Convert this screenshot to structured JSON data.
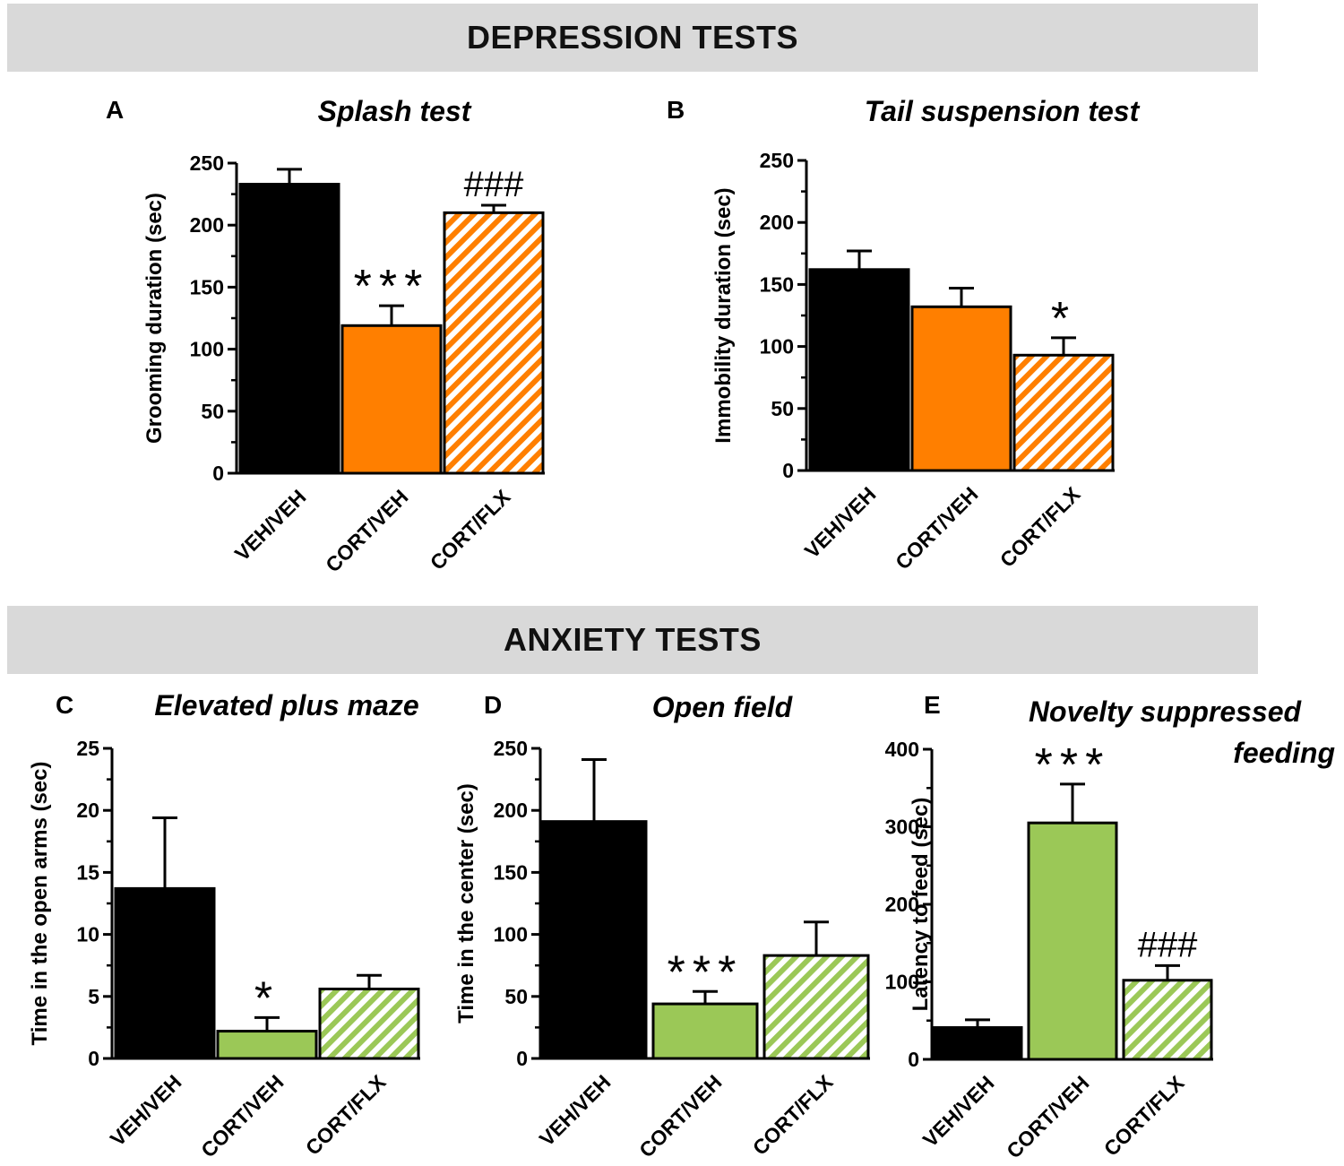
{
  "sections": {
    "depression": "DEPRESSION TESTS",
    "anxiety": "ANXIETY TESTS"
  },
  "colors": {
    "veh": "#000000",
    "orange": "#ff7f00",
    "green": "#9bc857",
    "banner": "#d9d9d9"
  },
  "chart_data": [
    {
      "panel": "A",
      "type": "bar",
      "title": "Splash test",
      "xlabel": "",
      "ylabel": "Grooming duration (sec)",
      "ylim": [
        0,
        250
      ],
      "yticks": [
        0,
        50,
        100,
        150,
        200,
        250
      ],
      "categories": [
        "VEH/VEH",
        "CORT/VEH",
        "CORT/FLX"
      ],
      "values": [
        233,
        119,
        210
      ],
      "errors": [
        12,
        16,
        6
      ],
      "annotations": [
        "",
        "***",
        "###"
      ],
      "colors": [
        "#000000",
        "#ff7f00",
        "#ff7f00"
      ],
      "hatched": [
        false,
        false,
        true
      ]
    },
    {
      "panel": "B",
      "type": "bar",
      "title": "Tail suspension test",
      "xlabel": "",
      "ylabel": "Immobility duration (sec)",
      "ylim": [
        0,
        250
      ],
      "yticks": [
        0,
        50,
        100,
        150,
        200,
        250
      ],
      "categories": [
        "VEH/VEH",
        "CORT/VEH",
        "CORT/FLX"
      ],
      "values": [
        162,
        132,
        93
      ],
      "errors": [
        15,
        15,
        14
      ],
      "annotations": [
        "",
        "",
        "*"
      ],
      "colors": [
        "#000000",
        "#ff7f00",
        "#ff7f00"
      ],
      "hatched": [
        false,
        false,
        true
      ]
    },
    {
      "panel": "C",
      "type": "bar",
      "title": "Elevated plus maze",
      "xlabel": "",
      "ylabel": "Time in the open arms (sec)",
      "ylim": [
        0,
        25
      ],
      "yticks": [
        0,
        5,
        10,
        15,
        20,
        25
      ],
      "categories": [
        "VEH/VEH",
        "CORT/VEH",
        "CORT/FLX"
      ],
      "values": [
        13.7,
        2.2,
        5.6
      ],
      "errors": [
        5.7,
        1.1,
        1.1
      ],
      "annotations": [
        "",
        "*",
        ""
      ],
      "colors": [
        "#000000",
        "#9bc857",
        "#9bc857"
      ],
      "hatched": [
        false,
        false,
        true
      ]
    },
    {
      "panel": "D",
      "type": "bar",
      "title": "Open field",
      "xlabel": "",
      "ylabel": "Time in the center (sec)",
      "ylim": [
        0,
        250
      ],
      "yticks": [
        0,
        50,
        100,
        150,
        200,
        250
      ],
      "categories": [
        "VEH/VEH",
        "CORT/VEH",
        "CORT/FLX"
      ],
      "values": [
        191,
        44,
        83
      ],
      "errors": [
        50,
        10,
        27
      ],
      "annotations": [
        "",
        "***",
        ""
      ],
      "colors": [
        "#000000",
        "#9bc857",
        "#9bc857"
      ],
      "hatched": [
        false,
        false,
        true
      ]
    },
    {
      "panel": "E",
      "type": "bar",
      "title": "Novelty suppressed",
      "title_line2": "feeding",
      "xlabel": "",
      "ylabel": "Latency to feed (sec)",
      "ylim": [
        0,
        400
      ],
      "yticks": [
        0,
        100,
        200,
        300,
        400
      ],
      "categories": [
        "VEH/VEH",
        "CORT/VEH",
        "CORT/FLX"
      ],
      "values": [
        41,
        305,
        102
      ],
      "errors": [
        10,
        50,
        19
      ],
      "annotations": [
        "",
        "***",
        "###"
      ],
      "colors": [
        "#000000",
        "#9bc857",
        "#9bc857"
      ],
      "hatched": [
        false,
        false,
        true
      ]
    }
  ]
}
